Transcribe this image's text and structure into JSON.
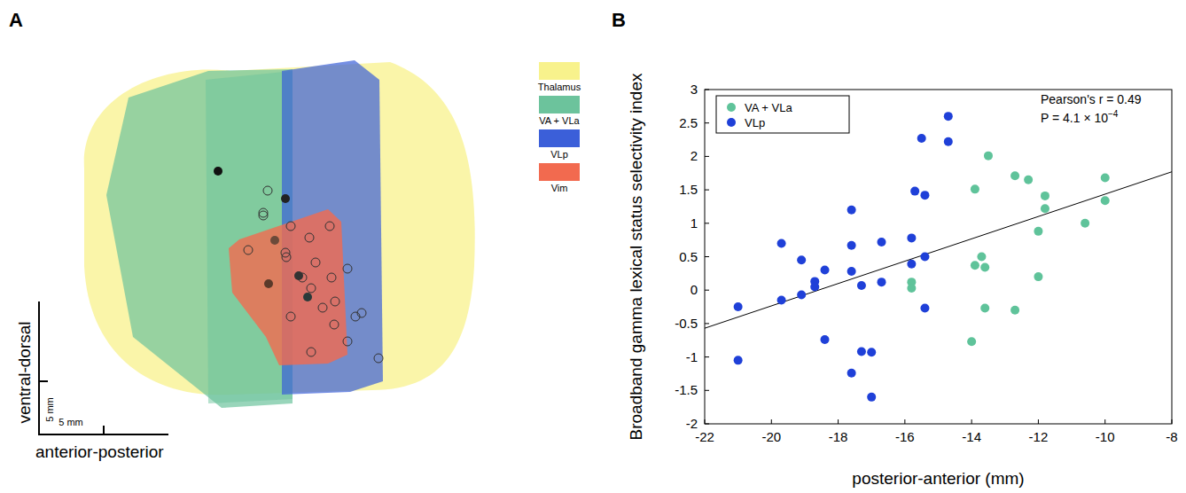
{
  "panel_a": {
    "panel_label": "A",
    "legend": [
      {
        "label": "Thalamus",
        "color": "#f8f28c"
      },
      {
        "label": "VA + VLa",
        "color": "#6cc39c"
      },
      {
        "label": "VLp",
        "color": "#3b5fd9"
      },
      {
        "label": "Vim",
        "color": "#f26a4f"
      }
    ],
    "scale_bar_labels": [
      "5 mm",
      "5 mm"
    ],
    "axis_labels": {
      "vertical": "ventral-dorsal",
      "horizontal": "anterior-posterior"
    }
  },
  "chart_data": {
    "type": "scatter",
    "panel_label": "B",
    "x_label": "posterior-anterior (mm)",
    "y_label": "Broadband gamma lexical status selectivity index",
    "xlim": [
      -22,
      -8
    ],
    "ylim": [
      -2,
      3
    ],
    "xticks": [
      -22,
      -20,
      -18,
      -16,
      -14,
      -12,
      -10,
      -8
    ],
    "yticks": [
      -2,
      -1.5,
      -1,
      -0.5,
      0,
      0.5,
      1,
      1.5,
      2,
      2.5,
      3
    ],
    "legend": "upper left",
    "annotations": [
      {
        "text": "Pearson's r = 0.49"
      },
      {
        "text": "P = 4.1 × 10",
        "superscript": "−4"
      }
    ],
    "series": [
      {
        "name": "VA + VLa",
        "color": "#5fc39a",
        "marker": "circle",
        "x": [
          -15.8,
          -15.8,
          -14.0,
          -13.9,
          -13.9,
          -13.7,
          -13.6,
          -13.6,
          -13.5,
          -12.7,
          -12.7,
          -12.3,
          -12.0,
          -12.0,
          -11.8,
          -11.8,
          -10.6,
          -10.0,
          -10.0
        ],
        "values": [
          0.12,
          0.03,
          -0.77,
          1.51,
          0.37,
          0.5,
          0.34,
          -0.27,
          2.01,
          1.71,
          -0.3,
          1.65,
          0.88,
          0.2,
          1.41,
          1.22,
          1.0,
          1.68,
          1.34
        ]
      },
      {
        "name": "VLp",
        "color": "#1f40d8",
        "marker": "circle",
        "x": [
          -21.0,
          -21.0,
          -19.7,
          -19.7,
          -19.1,
          -19.1,
          -18.7,
          -18.7,
          -18.4,
          -18.4,
          -17.6,
          -17.6,
          -17.6,
          -17.6,
          -17.3,
          -17.3,
          -17.0,
          -17.0,
          -16.7,
          -16.7,
          -15.8,
          -15.8,
          -15.7,
          -15.5,
          -15.4,
          -15.4,
          -15.4,
          -14.7,
          -14.7
        ],
        "values": [
          -0.25,
          -1.05,
          0.7,
          -0.15,
          0.45,
          -0.07,
          0.13,
          0.05,
          0.3,
          -0.74,
          1.2,
          0.67,
          0.28,
          -1.24,
          0.07,
          -0.92,
          -0.93,
          -1.6,
          0.72,
          0.12,
          0.78,
          0.39,
          1.48,
          2.27,
          1.42,
          0.5,
          -0.27,
          2.6,
          2.22
        ]
      }
    ],
    "fit_line": {
      "x": [
        -22,
        -8
      ],
      "values": [
        -0.57,
        1.77
      ]
    }
  }
}
